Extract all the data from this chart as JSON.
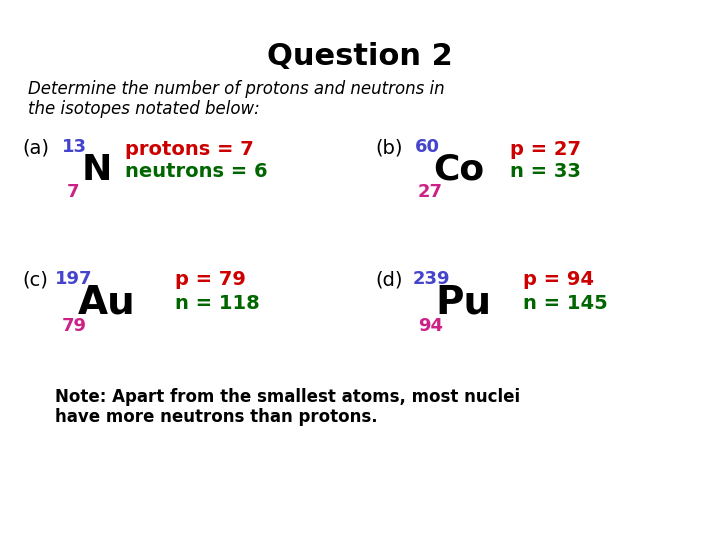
{
  "title": "Question 2",
  "subtitle_line1": "Determine the number of protons and neutrons in",
  "subtitle_line2": "the isotopes notated below:",
  "background_color": "#ffffff",
  "blue_color": "#4444cc",
  "pink_color": "#cc2288",
  "red_color": "#cc0000",
  "green_color": "#006600",
  "black_color": "#000000",
  "note_text_line1": "Note: Apart from the smallest atoms, most nuclei",
  "note_text_line2": "have more neutrons than protons."
}
